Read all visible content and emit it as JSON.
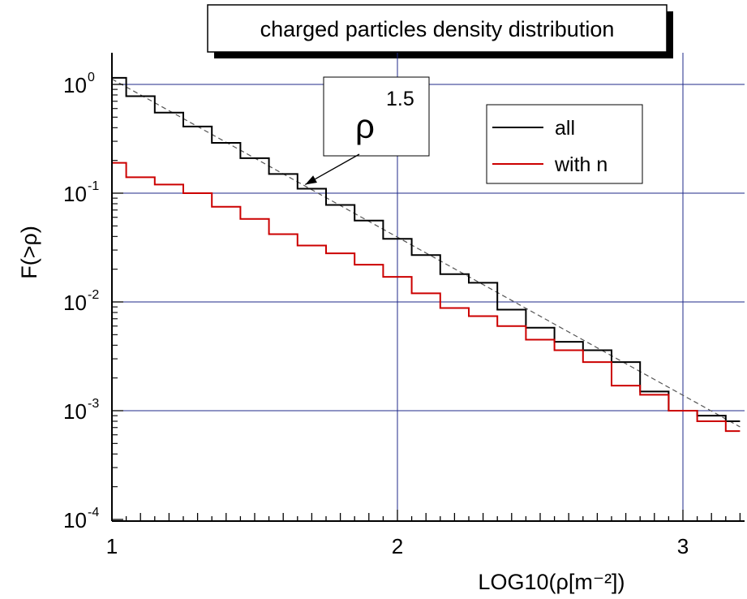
{
  "chart_data": {
    "type": "line",
    "title": "charged particles density distribution",
    "xlabel": "LOG10(ρ[m⁻²])",
    "ylabel": "F(>ρ)",
    "xlim": [
      1.0,
      3.2
    ],
    "ylim": [
      0.0001,
      1.5
    ],
    "yscale": "log",
    "grid": true,
    "legend_position": "top-right",
    "x_ticks": [
      "1",
      "2",
      "3"
    ],
    "y_ticks": [
      {
        "value": 1,
        "base": "10",
        "exp": "0"
      },
      {
        "value": 0.1,
        "base": "10",
        "exp": "-1"
      },
      {
        "value": 0.01,
        "base": "10",
        "exp": "-2"
      },
      {
        "value": 0.001,
        "base": "10",
        "exp": "-3"
      },
      {
        "value": 0.0001,
        "base": "10",
        "exp": "-4"
      }
    ],
    "annotation": {
      "label": "ρ",
      "exponent": "1.5",
      "target": [
        1.66,
        0.11
      ]
    },
    "reference_line": {
      "x": [
        1.0,
        3.2
      ],
      "y": [
        1.12,
        0.00071
      ],
      "style": "dashed",
      "color": "#555555"
    },
    "series": [
      {
        "name": "all",
        "color": "#000000",
        "step": "post",
        "x": [
          1.0,
          1.05,
          1.15,
          1.25,
          1.35,
          1.45,
          1.55,
          1.65,
          1.75,
          1.85,
          1.95,
          2.05,
          2.15,
          2.25,
          2.35,
          2.45,
          2.55,
          2.65,
          2.75,
          2.85,
          2.95,
          3.05,
          3.15,
          3.2
        ],
        "y": [
          1.15,
          0.78,
          0.55,
          0.41,
          0.29,
          0.21,
          0.15,
          0.11,
          0.078,
          0.056,
          0.038,
          0.027,
          0.018,
          0.015,
          0.0085,
          0.0058,
          0.0043,
          0.0036,
          0.0028,
          0.0015,
          0.001,
          0.0009,
          0.0008,
          0.0008
        ]
      },
      {
        "name": "with n",
        "color": "#cc0000",
        "step": "post",
        "x": [
          1.0,
          1.05,
          1.15,
          1.25,
          1.35,
          1.45,
          1.55,
          1.65,
          1.75,
          1.85,
          1.95,
          2.05,
          2.15,
          2.25,
          2.35,
          2.45,
          2.55,
          2.65,
          2.75,
          2.85,
          2.95,
          3.05,
          3.15,
          3.2
        ],
        "y": [
          0.19,
          0.14,
          0.12,
          0.1,
          0.075,
          0.058,
          0.042,
          0.033,
          0.028,
          0.022,
          0.017,
          0.012,
          0.0088,
          0.0074,
          0.006,
          0.0045,
          0.0036,
          0.0028,
          0.0017,
          0.0014,
          0.001,
          0.0008,
          0.00065,
          0.00065
        ]
      }
    ]
  }
}
